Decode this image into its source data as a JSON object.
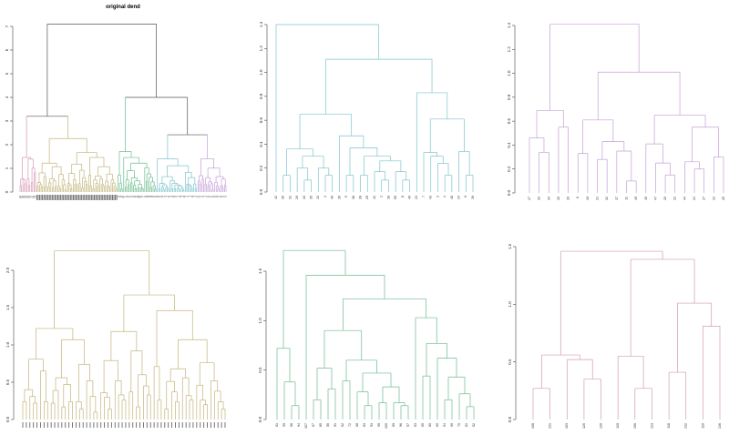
{
  "chart_data": [
    {
      "type": "dendrogram",
      "title": "original dend",
      "ylim": [
        0,
        7
      ],
      "yticks": [
        "0",
        "1",
        "2",
        "3",
        "4",
        "5",
        "6",
        "7"
      ],
      "color": "#555555",
      "tree": [
        7.1,
        [
          3.2,
          {
            "ref": 5
          },
          {
            "ref": 3
          }
        ],
        [
          4.0,
          {
            "ref": 4
          },
          [
            2.42,
            {
              "ref": 1
            },
            {
              "ref": 2
            }
          ]
        ]
      ]
    },
    {
      "type": "dendrogram",
      "ylim": [
        0,
        1.4
      ],
      "yticks": [
        "0.0",
        "0.2",
        "0.4",
        "0.6",
        "0.8",
        "1.0",
        "1.2",
        "1.4"
      ],
      "color": "#7cc3cd",
      "tree": [
        1.4,
        "42",
        [
          1.11,
          [
            0.65,
            [
              0.36,
              [
                0.14,
                "30",
                "31"
              ],
              [
                0.3,
                [
                  0.2,
                  "26",
                  [
                    0.1,
                    "10",
                    "35"
                  ]
                ],
                [
                  0.2,
                  "13",
                  [
                    0.14,
                    "2",
                    "46"
                  ]
                ]
              ]
            ],
            [
              0.47,
              "36",
              [
                0.37,
                [
                  0.14,
                  "5",
                  "38"
                ],
                [
                  0.3,
                  [
                    0.14,
                    "28",
                    "29"
                  ],
                  [
                    0.26,
                    [
                      0.17,
                      "41",
                      [
                        0.1,
                        "1",
                        "18"
                      ]
                    ],
                    [
                      0.17,
                      "50",
                      [
                        0.1,
                        "8",
                        "40"
                      ]
                    ]
                  ]
                ]
              ]
            ]
          ],
          [
            0.83,
            "23",
            [
              0.61,
              [
                0.33,
                "7",
                [
                  0.3,
                  "43",
                  [
                    0.24,
                    "3",
                    [
                      0.14,
                      "4",
                      "48"
                    ]
                  ]
                ]
              ],
              [
                0.34,
                "14",
                [
                  0.14,
                  "9",
                  "39"
                ]
              ]
            ]
          ]
        ]
      ]
    },
    {
      "type": "dendrogram",
      "ylim": [
        0,
        1.4
      ],
      "yticks": [
        "0.0",
        "0.2",
        "0.4",
        "0.6",
        "0.8",
        "1.0",
        "1.2",
        "1.4"
      ],
      "color": "#c39fd8",
      "tree": [
        1.41,
        [
          0.69,
          [
            0.46,
            "17",
            [
              0.34,
              "33",
              "34"
            ]
          ],
          [
            0.55,
            "15",
            "16"
          ]
        ],
        [
          1.01,
          [
            0.61,
            [
              0.33,
              "6",
              "19"
            ],
            [
              0.43,
              [
                0.28,
                "21",
                "32"
              ],
              [
                0.35,
                "37",
                [
                  0.1,
                  "11",
                  "49"
                ]
              ]
            ]
          ],
          [
            0.65,
            [
              0.41,
              "45",
              [
                0.25,
                "47",
                [
                  0.15,
                  "20",
                  "22"
                ]
              ]
            ],
            [
              0.55,
              [
                0.26,
                "44",
                [
                  0.2,
                  "24",
                  "27"
                ]
              ],
              [
                0.3,
                "12",
                "25"
              ]
            ]
          ]
        ]
      ]
    },
    {
      "type": "dendrogram",
      "ylim": [
        0,
        2.0
      ],
      "yticks": [
        "0.0",
        "0.5",
        "1.0",
        "1.5",
        "2.0"
      ],
      "color": "#c2b47a",
      "tree": [
        2.26,
        [
          1.22,
          [
            0.81,
            [
              0.4,
              [
                0.24,
                "",
                ""
              ],
              [
                0.31,
                "",
                [
                  0.22,
                  "",
                  ""
                ]
              ]
            ],
            [
              0.65,
              "",
              [
                0.24,
                "",
                ""
              ]
            ]
          ],
          [
            1.07,
            [
              0.56,
              [
                0.39,
                [
                  0.22,
                  "",
                  ""
                ],
                ""
              ],
              [
                0.47,
                [
                  0.17,
                  "",
                  ""
                ],
                [
                  0.24,
                  "",
                  ""
                ]
              ]
            ],
            [
              0.74,
              [
                0.24,
                "",
                [
                  0.14,
                  "",
                  ""
                ]
              ],
              [
                0.52,
                "",
                [
                  0.31,
                  "",
                  [
                    0.1,
                    "",
                    ""
                  ]
                ]
              ]
            ]
          ]
        ],
        [
          1.67,
          [
            1.18,
            [
              0.79,
              [
                0.36,
                "",
                [
                  0.3,
                  "",
                  [
                    0.14,
                    "",
                    ""
                  ]
                ]
              ],
              [
                0.52,
                "",
                [
                  0.33,
                  "",
                  [
                    0.26,
                    "",
                    ""
                  ]
                ]
              ]
            ],
            [
              0.92,
              [
                0.37,
                "",
                ""
              ],
              [
                0.6,
                [
                  0.17,
                  "",
                  ""
                ],
                [
                  0.45,
                  "",
                  [
                    0.33,
                    "",
                    ""
                  ]
                ]
              ]
            ]
          ],
          [
            1.46,
            [
              0.71,
              "",
              [
                0.26,
                "",
                ""
              ]
            ],
            [
              1.07,
              [
                0.68,
                [
                  0.51,
                  [
                    0.14,
                    "",
                    ""
                  ],
                  [
                    0.37,
                    "",
                    [
                      0.24,
                      "",
                      ""
                    ]
                  ]
                ],
                [
                  0.56,
                  "",
                  [
                    0.32,
                    "",
                    [
                      0.26,
                      "",
                      ""
                    ]
                  ]
                ]
              ],
              [
                0.76,
                [
                  0.46,
                  "",
                  [
                    0.26,
                    "",
                    [
                      0.2,
                      "",
                      ""
                    ]
                  ]
                ],
                [
                  0.52,
                  "",
                  [
                    0.38,
                    "",
                    [
                      0.24,
                      "",
                      [
                        0.14,
                        "",
                        ""
                      ]
                    ]
                  ]
                ]
              ]
            ]
          ]
        ]
      ]
    },
    {
      "type": "dendrogram",
      "ylim": [
        0,
        1.5
      ],
      "yticks": [
        "0.0",
        "0.5",
        "1.0",
        "1.5"
      ],
      "color": "#6dbb8f",
      "tree": [
        1.71,
        [
          0.72,
          "61",
          [
            0.38,
            "99",
            [
              0.14,
              "58",
              "94"
            ]
          ]
        ],
        [
          1.46,
          "107",
          [
            1.22,
            [
              0.9,
              [
                0.52,
                [
                  0.2,
                  "67",
                  "85"
                ],
                [
                  0.31,
                  "56",
                  "91"
                ]
              ],
              [
                0.6,
                [
                  0.39,
                  "62",
                  "72"
                ],
                [
                  0.47,
                  [
                    0.28,
                    "68",
                    [
                      0.14,
                      "83",
                      "93"
                    ]
                  ],
                  [
                    0.33,
                    [
                      0.17,
                      "95",
                      "100"
                    ],
                    [
                      0.17,
                      "89",
                      [
                        0.14,
                        "96",
                        "97"
                      ]
                    ]
                  ]
                ]
              ]
            ],
            [
              1.03,
              "63",
              [
                0.77,
                [
                  0.44,
                  "65",
                  "80"
                ],
                [
                  0.62,
                  "60",
                  [
                    0.43,
                    [
                      0.2,
                      "54",
                      "90"
                    ],
                    [
                      0.26,
                      "70",
                      [
                        0.13,
                        "81",
                        "82"
                      ]
                    ]
                  ]
                ]
              ]
            ]
          ]
        ]
      ]
    },
    {
      "type": "dendrogram",
      "ylim": [
        0,
        1.5
      ],
      "yticks": [
        "0.0",
        "0.5",
        "1.0",
        "1.5"
      ],
      "color": "#d59ab4",
      "tree": [
        1.46,
        [
          0.56,
          [
            0.27,
            "108",
            "131"
          ],
          [
            0.52,
            "103",
            [
              0.35,
              "126",
              "130"
            ]
          ]
        ],
        [
          1.39,
          [
            0.55,
            "119",
            [
              0.27,
              "106",
              "123"
            ]
          ],
          [
            1.01,
            [
              0.41,
              "118",
              "132"
            ],
            [
              0.81,
              "110",
              "136"
            ]
          ]
        ]
      ]
    }
  ]
}
